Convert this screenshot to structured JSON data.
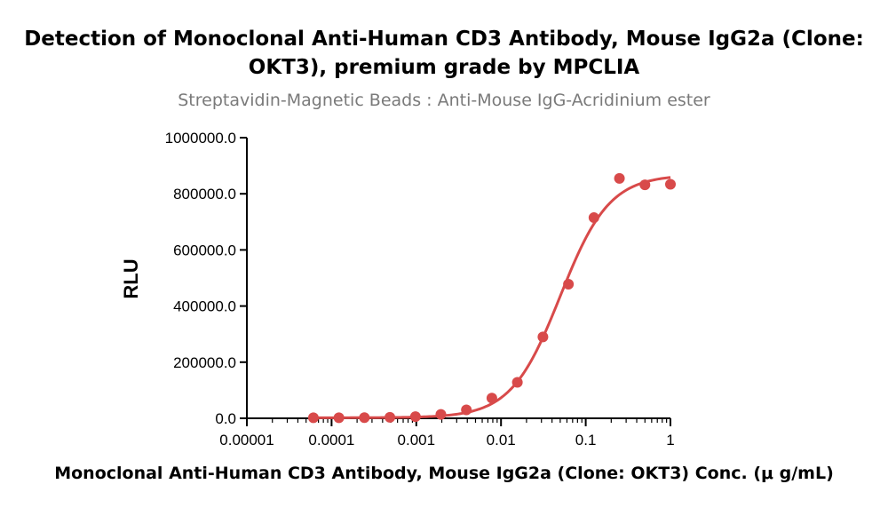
{
  "chart_data": {
    "type": "scatter",
    "title_line1": "Detection of Monoclonal Anti-Human CD3 Antibody, Mouse IgG2a (Clone:",
    "title_line2": "OKT3), premium grade by MPCLIA",
    "subtitle": "Streptavidin-Magnetic Beads : Anti-Mouse IgG-Acridinium ester",
    "xlabel": "Monoclonal Anti-Human CD3 Antibody, Mouse IgG2a (Clone: OKT3) Conc. (μ g/mL)",
    "ylabel": "RLU",
    "x_scale": "log",
    "xlim": [
      1e-05,
      1
    ],
    "ylim": [
      0,
      1000000
    ],
    "x_ticks": [
      1e-05,
      0.0001,
      0.001,
      0.01,
      0.1,
      1
    ],
    "x_tick_labels": [
      "0.00001",
      "0.0001",
      "0.001",
      "0.01",
      "0.1",
      "1"
    ],
    "y_ticks": [
      0,
      200000,
      400000,
      600000,
      800000,
      1000000
    ],
    "y_tick_labels": [
      "0.0",
      "200000.0",
      "400000.0",
      "600000.0",
      "800000.0",
      "1000000.0"
    ],
    "grid": false,
    "color": "#d84a4a",
    "series": [
      {
        "x": [
          6.1e-05,
          0.000122,
          0.000244,
          0.000488,
          0.000977,
          0.00195,
          0.0039,
          0.0078,
          0.0156,
          0.03125,
          0.0625,
          0.125,
          0.25,
          0.5,
          1
        ],
        "y": [
          2000,
          2000,
          2500,
          3500,
          6000,
          14000,
          30000,
          72000,
          128000,
          290000,
          478000,
          715000,
          855000,
          832000,
          834000
        ]
      }
    ],
    "fit_curve": {
      "model": "4PL",
      "bottom": 2000,
      "top": 868000,
      "ec50": 0.05,
      "hill": 1.5
    }
  }
}
